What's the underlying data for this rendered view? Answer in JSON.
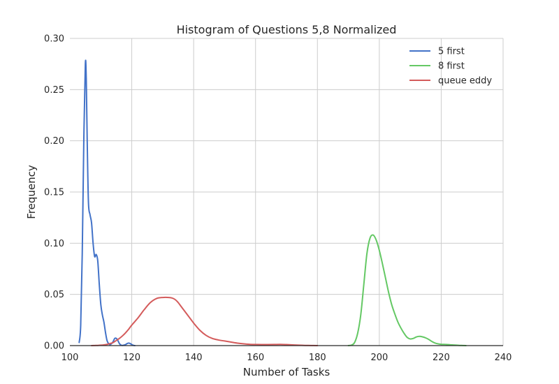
{
  "chart_data": {
    "type": "line",
    "title": "Histogram of Questions 5,8 Normalized",
    "xlabel": "Number of Tasks",
    "ylabel": "Frequency",
    "xlim": [
      100,
      240
    ],
    "ylim": [
      0,
      0.3
    ],
    "xticks": [
      "100",
      "120",
      "140",
      "160",
      "180",
      "200",
      "220",
      "240"
    ],
    "yticks": [
      "0.00",
      "0.05",
      "0.10",
      "0.15",
      "0.20",
      "0.25",
      "0.30"
    ],
    "grid": true,
    "legend_position": "top-right",
    "series": [
      {
        "name": "5 first",
        "color": "#4272c8",
        "x": [
          103,
          103.5,
          104,
          104.5,
          105,
          105.3,
          105.6,
          106,
          106.5,
          107,
          107.5,
          108,
          108.5,
          109,
          109.5,
          110,
          110.5,
          111,
          111.5,
          112,
          112.5,
          113,
          113.5,
          114,
          114.5,
          115,
          115.5,
          116,
          116.5,
          117,
          117.5,
          118,
          118.5,
          119,
          119.5,
          120,
          120.5,
          121
        ],
        "y": [
          0.003,
          0.02,
          0.09,
          0.2,
          0.275,
          0.26,
          0.2,
          0.14,
          0.128,
          0.12,
          0.1,
          0.087,
          0.089,
          0.083,
          0.06,
          0.04,
          0.03,
          0.023,
          0.013,
          0.005,
          0.002,
          0.001,
          0.002,
          0.004,
          0.007,
          0.007,
          0.005,
          0.002,
          0.0005,
          0.0002,
          0.0005,
          0.001,
          0.002,
          0.0025,
          0.002,
          0.001,
          0.0003,
          0.0
        ]
      },
      {
        "name": "8 first",
        "color": "#64c864",
        "x": [
          190,
          191,
          192,
          193,
          194,
          195,
          196,
          197,
          198,
          199,
          200,
          201,
          202,
          203,
          204,
          205,
          206,
          207,
          208,
          209,
          210,
          211,
          212,
          213,
          214,
          215,
          216,
          217,
          218,
          219,
          220,
          221,
          222,
          223,
          224,
          225,
          226,
          227,
          228
        ],
        "y": [
          0.0,
          0.0005,
          0.003,
          0.012,
          0.03,
          0.06,
          0.09,
          0.105,
          0.108,
          0.103,
          0.093,
          0.08,
          0.066,
          0.052,
          0.04,
          0.031,
          0.023,
          0.017,
          0.012,
          0.008,
          0.0065,
          0.007,
          0.0085,
          0.009,
          0.0085,
          0.0075,
          0.006,
          0.004,
          0.0025,
          0.0017,
          0.0013,
          0.0012,
          0.001,
          0.0008,
          0.0006,
          0.0004,
          0.0002,
          0.0001,
          0.0
        ]
      },
      {
        "name": "queue eddy",
        "color": "#d45b5b",
        "x": [
          107,
          108,
          109,
          110,
          111,
          112,
          113,
          114,
          115,
          116,
          117,
          118,
          119,
          120,
          122,
          124,
          126,
          128,
          130,
          132,
          133,
          134,
          135,
          136,
          137,
          138,
          139,
          140,
          142,
          144,
          146,
          148,
          150,
          152,
          154,
          156,
          158,
          160,
          162,
          164,
          166,
          168,
          170,
          172,
          174,
          176,
          178,
          180
        ],
        "y": [
          0.0,
          0.0001,
          0.0002,
          0.0004,
          0.0007,
          0.0012,
          0.002,
          0.003,
          0.005,
          0.007,
          0.0095,
          0.0125,
          0.016,
          0.02,
          0.027,
          0.035,
          0.042,
          0.046,
          0.047,
          0.047,
          0.0465,
          0.045,
          0.042,
          0.038,
          0.034,
          0.03,
          0.026,
          0.022,
          0.015,
          0.01,
          0.007,
          0.0055,
          0.0045,
          0.0035,
          0.0025,
          0.0018,
          0.0013,
          0.0011,
          0.001,
          0.001,
          0.0011,
          0.0012,
          0.001,
          0.0007,
          0.0004,
          0.0002,
          0.0001,
          0.0
        ]
      }
    ]
  }
}
